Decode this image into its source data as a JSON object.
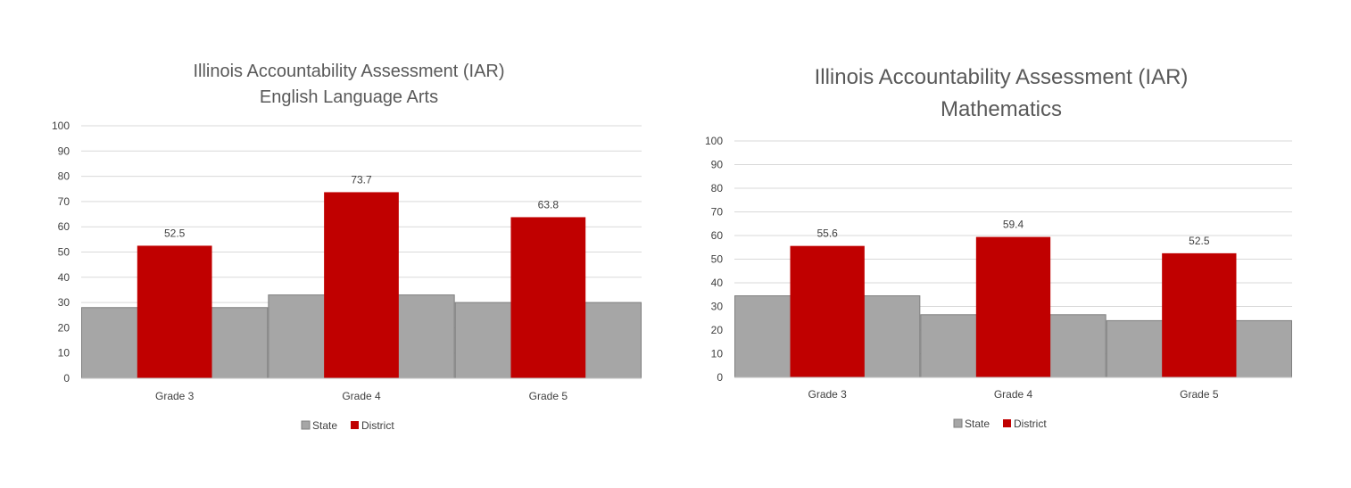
{
  "colors": {
    "state": "#a6a6a6",
    "state_border": "#7f7f7f",
    "district": "#c00000",
    "grid": "#d9d9d9",
    "axis": "#bfbfbf"
  },
  "chart_data": [
    {
      "type": "bar",
      "title_line1": "Illinois Accountability Assessment (IAR)",
      "title_line2": "English Language Arts",
      "categories": [
        "Grade 3",
        "Grade 4",
        "Grade 5"
      ],
      "ylim": [
        0,
        100
      ],
      "yticks": [
        "0",
        "10",
        "20",
        "30",
        "40",
        "50",
        "60",
        "70",
        "80",
        "90",
        "100"
      ],
      "grid": true,
      "legend": "bottom",
      "series": [
        {
          "name": "State",
          "values": [
            28,
            33,
            30
          ]
        },
        {
          "name": "District",
          "values": [
            52.5,
            73.7,
            63.8
          ],
          "data_labels": [
            "52.5",
            "73.7",
            "63.8"
          ]
        }
      ]
    },
    {
      "type": "bar",
      "title_line1": "Illinois Accountability Assessment (IAR)",
      "title_line2": "Mathematics",
      "categories": [
        "Grade 3",
        "Grade 4",
        "Grade 5"
      ],
      "ylim": [
        0,
        100
      ],
      "yticks": [
        "0",
        "10",
        "20",
        "30",
        "40",
        "50",
        "60",
        "70",
        "80",
        "90",
        "100"
      ],
      "grid": true,
      "legend": "bottom",
      "series": [
        {
          "name": "State",
          "values": [
            34.5,
            26.5,
            24
          ]
        },
        {
          "name": "District",
          "values": [
            55.6,
            59.4,
            52.5
          ],
          "data_labels": [
            "55.6",
            "59.4",
            "52.5"
          ]
        }
      ]
    }
  ]
}
